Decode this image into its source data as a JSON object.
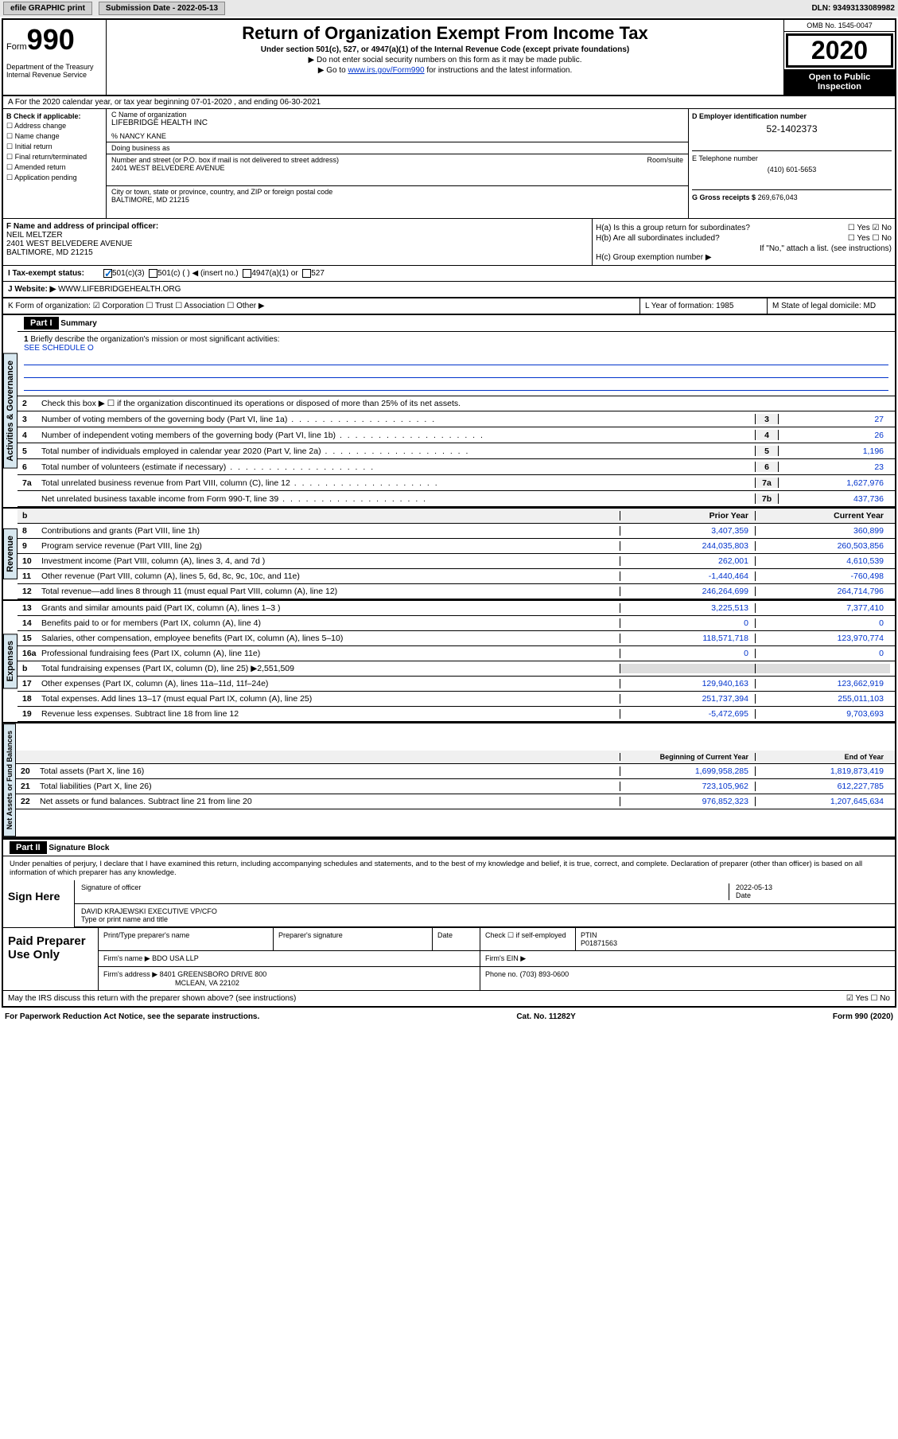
{
  "topbar": {
    "efile": "efile GRAPHIC print",
    "submission_label": "Submission Date -",
    "submission_date": "2022-05-13",
    "dln_label": "DLN:",
    "dln": "93493133089982"
  },
  "header": {
    "form_word": "Form",
    "form_num": "990",
    "dept": "Department of the Treasury Internal Revenue Service",
    "title": "Return of Organization Exempt From Income Tax",
    "subtitle": "Under section 501(c), 527, or 4947(a)(1) of the Internal Revenue Code (except private foundations)",
    "arrow1": "▶ Do not enter social security numbers on this form as it may be made public.",
    "arrow2_pre": "▶ Go to ",
    "arrow2_link": "www.irs.gov/Form990",
    "arrow2_post": " for instructions and the latest information.",
    "omb": "OMB No. 1545-0047",
    "year": "2020",
    "open_public": "Open to Public Inspection"
  },
  "section_a": "A For the 2020 calendar year, or tax year beginning 07-01-2020   , and ending 06-30-2021",
  "col_b": {
    "header": "B Check if applicable:",
    "items": [
      "☐ Address change",
      "☐ Name change",
      "☐ Initial return",
      "☐ Final return/terminated",
      "☐ Amended return",
      "☐ Application pending"
    ]
  },
  "col_c": {
    "name_label": "C Name of organization",
    "name": "LIFEBRIDGE HEALTH INC",
    "care_of": "% NANCY KANE",
    "dba_label": "Doing business as",
    "addr_label": "Number and street (or P.O. box if mail is not delivered to street address)",
    "room_label": "Room/suite",
    "addr": "2401 WEST BELVEDERE AVENUE",
    "city_label": "City or town, state or province, country, and ZIP or foreign postal code",
    "city": "BALTIMORE, MD  21215"
  },
  "col_d": {
    "ein_label": "D Employer identification number",
    "ein": "52-1402373",
    "phone_label": "E Telephone number",
    "phone": "(410) 601-5653",
    "gross_label": "G Gross receipts $",
    "gross": "269,676,043"
  },
  "col_f": {
    "label": "F Name and address of principal officer:",
    "name": "NEIL MELTZER",
    "addr1": "2401 WEST BELVEDERE AVENUE",
    "addr2": "BALTIMORE, MD  21215"
  },
  "col_h": {
    "ha": "H(a)  Is this a group return for subordinates?",
    "ha_yn": "☐ Yes ☑ No",
    "hb": "H(b)  Are all subordinates included?",
    "hb_yn": "☐ Yes ☐ No",
    "hb_note": "If \"No,\" attach a list. (see instructions)",
    "hc": "H(c)  Group exemption number ▶"
  },
  "tax_status": {
    "label": "I  Tax-exempt status:",
    "opt1": "501(c)(3)",
    "opt2": "501(c) (  ) ◀ (insert no.)",
    "opt3": "4947(a)(1) or",
    "opt4": "527"
  },
  "website": {
    "label": "J  Website: ▶",
    "value": "WWW.LIFEBRIDGEHEALTH.ORG"
  },
  "k_row": {
    "k": "K Form of organization:  ☑ Corporation  ☐ Trust  ☐ Association  ☐ Other ▶",
    "l": "L Year of formation: 1985",
    "m": "M State of legal domicile: MD"
  },
  "parts": {
    "p1": "Part I",
    "p1_title": "Summary",
    "p2": "Part II",
    "p2_title": "Signature Block"
  },
  "summary": {
    "line1": "Briefly describe the organization's mission or most significant activities:",
    "line1_val": "SEE SCHEDULE O",
    "line2": "Check this box ▶ ☐  if the organization discontinued its operations or disposed of more than 25% of its net assets.",
    "rows_single": [
      {
        "n": "3",
        "label": "Number of voting members of the governing body (Part VI, line 1a)",
        "box": "3",
        "val": "27"
      },
      {
        "n": "4",
        "label": "Number of independent voting members of the governing body (Part VI, line 1b)",
        "box": "4",
        "val": "26"
      },
      {
        "n": "5",
        "label": "Total number of individuals employed in calendar year 2020 (Part V, line 2a)",
        "box": "5",
        "val": "1,196"
      },
      {
        "n": "6",
        "label": "Total number of volunteers (estimate if necessary)",
        "box": "6",
        "val": "23"
      },
      {
        "n": "7a",
        "label": "Total unrelated business revenue from Part VIII, column (C), line 12",
        "box": "7a",
        "val": "1,627,976"
      },
      {
        "n": "",
        "label": "Net unrelated business taxable income from Form 990-T, line 39",
        "box": "7b",
        "val": "437,736"
      }
    ],
    "col_headers": {
      "prior": "Prior Year",
      "current": "Current Year",
      "begin": "Beginning of Current Year",
      "end": "End of Year"
    },
    "revenue": [
      {
        "n": "8",
        "label": "Contributions and grants (Part VIII, line 1h)",
        "v1": "3,407,359",
        "v2": "360,899"
      },
      {
        "n": "9",
        "label": "Program service revenue (Part VIII, line 2g)",
        "v1": "244,035,803",
        "v2": "260,503,856"
      },
      {
        "n": "10",
        "label": "Investment income (Part VIII, column (A), lines 3, 4, and 7d )",
        "v1": "262,001",
        "v2": "4,610,539"
      },
      {
        "n": "11",
        "label": "Other revenue (Part VIII, column (A), lines 5, 6d, 8c, 9c, 10c, and 11e)",
        "v1": "-1,440,464",
        "v2": "-760,498"
      },
      {
        "n": "12",
        "label": "Total revenue—add lines 8 through 11 (must equal Part VIII, column (A), line 12)",
        "v1": "246,264,699",
        "v2": "264,714,796"
      }
    ],
    "expenses": [
      {
        "n": "13",
        "label": "Grants and similar amounts paid (Part IX, column (A), lines 1–3 )",
        "v1": "3,225,513",
        "v2": "7,377,410"
      },
      {
        "n": "14",
        "label": "Benefits paid to or for members (Part IX, column (A), line 4)",
        "v1": "0",
        "v2": "0"
      },
      {
        "n": "15",
        "label": "Salaries, other compensation, employee benefits (Part IX, column (A), lines 5–10)",
        "v1": "118,571,718",
        "v2": "123,970,774"
      },
      {
        "n": "16a",
        "label": "Professional fundraising fees (Part IX, column (A), line 11e)",
        "v1": "0",
        "v2": "0"
      },
      {
        "n": "b",
        "label": "Total fundraising expenses (Part IX, column (D), line 25) ▶2,551,509",
        "v1": "",
        "v2": ""
      },
      {
        "n": "17",
        "label": "Other expenses (Part IX, column (A), lines 11a–11d, 11f–24e)",
        "v1": "129,940,163",
        "v2": "123,662,919"
      },
      {
        "n": "18",
        "label": "Total expenses. Add lines 13–17 (must equal Part IX, column (A), line 25)",
        "v1": "251,737,394",
        "v2": "255,011,103"
      },
      {
        "n": "19",
        "label": "Revenue less expenses. Subtract line 18 from line 12",
        "v1": "-5,472,695",
        "v2": "9,703,693"
      }
    ],
    "netassets": [
      {
        "n": "20",
        "label": "Total assets (Part X, line 16)",
        "v1": "1,699,958,285",
        "v2": "1,819,873,419"
      },
      {
        "n": "21",
        "label": "Total liabilities (Part X, line 26)",
        "v1": "723,105,962",
        "v2": "612,227,785"
      },
      {
        "n": "22",
        "label": "Net assets or fund balances. Subtract line 21 from line 20",
        "v1": "976,852,323",
        "v2": "1,207,645,634"
      }
    ]
  },
  "side_labels": {
    "gov": "Activities & Governance",
    "rev": "Revenue",
    "exp": "Expenses",
    "net": "Net Assets or Fund Balances"
  },
  "penalties": "Under penalties of perjury, I declare that I have examined this return, including accompanying schedules and statements, and to the best of my knowledge and belief, it is true, correct, and complete. Declaration of preparer (other than officer) is based on all information of which preparer has any knowledge.",
  "sign": {
    "here": "Sign Here",
    "sig_officer": "Signature of officer",
    "date": "Date",
    "date_val": "2022-05-13",
    "name_title": "DAVID KRAJEWSKI  EXECUTIVE VP/CFO",
    "type_label": "Type or print name and title"
  },
  "preparer": {
    "label": "Paid Preparer Use Only",
    "print_name_label": "Print/Type preparer's name",
    "prep_sig_label": "Preparer's signature",
    "date_label": "Date",
    "check_label": "Check ☐ if self-employed",
    "ptin_label": "PTIN",
    "ptin": "P01871563",
    "firm_name_label": "Firm's name   ▶",
    "firm_name": "BDO USA LLP",
    "firm_ein_label": "Firm's EIN ▶",
    "firm_addr_label": "Firm's address ▶",
    "firm_addr": "8401 GREENSBORO DRIVE 800",
    "firm_city": "MCLEAN, VA  22102",
    "phone_label": "Phone no.",
    "phone": "(703) 893-0600"
  },
  "discuss": "May the IRS discuss this return with the preparer shown above? (see instructions)",
  "discuss_yn": "☑ Yes  ☐ No",
  "footer": {
    "paperwork": "For Paperwork Reduction Act Notice, see the separate instructions.",
    "cat": "Cat. No. 11282Y",
    "form": "Form 990 (2020)"
  }
}
